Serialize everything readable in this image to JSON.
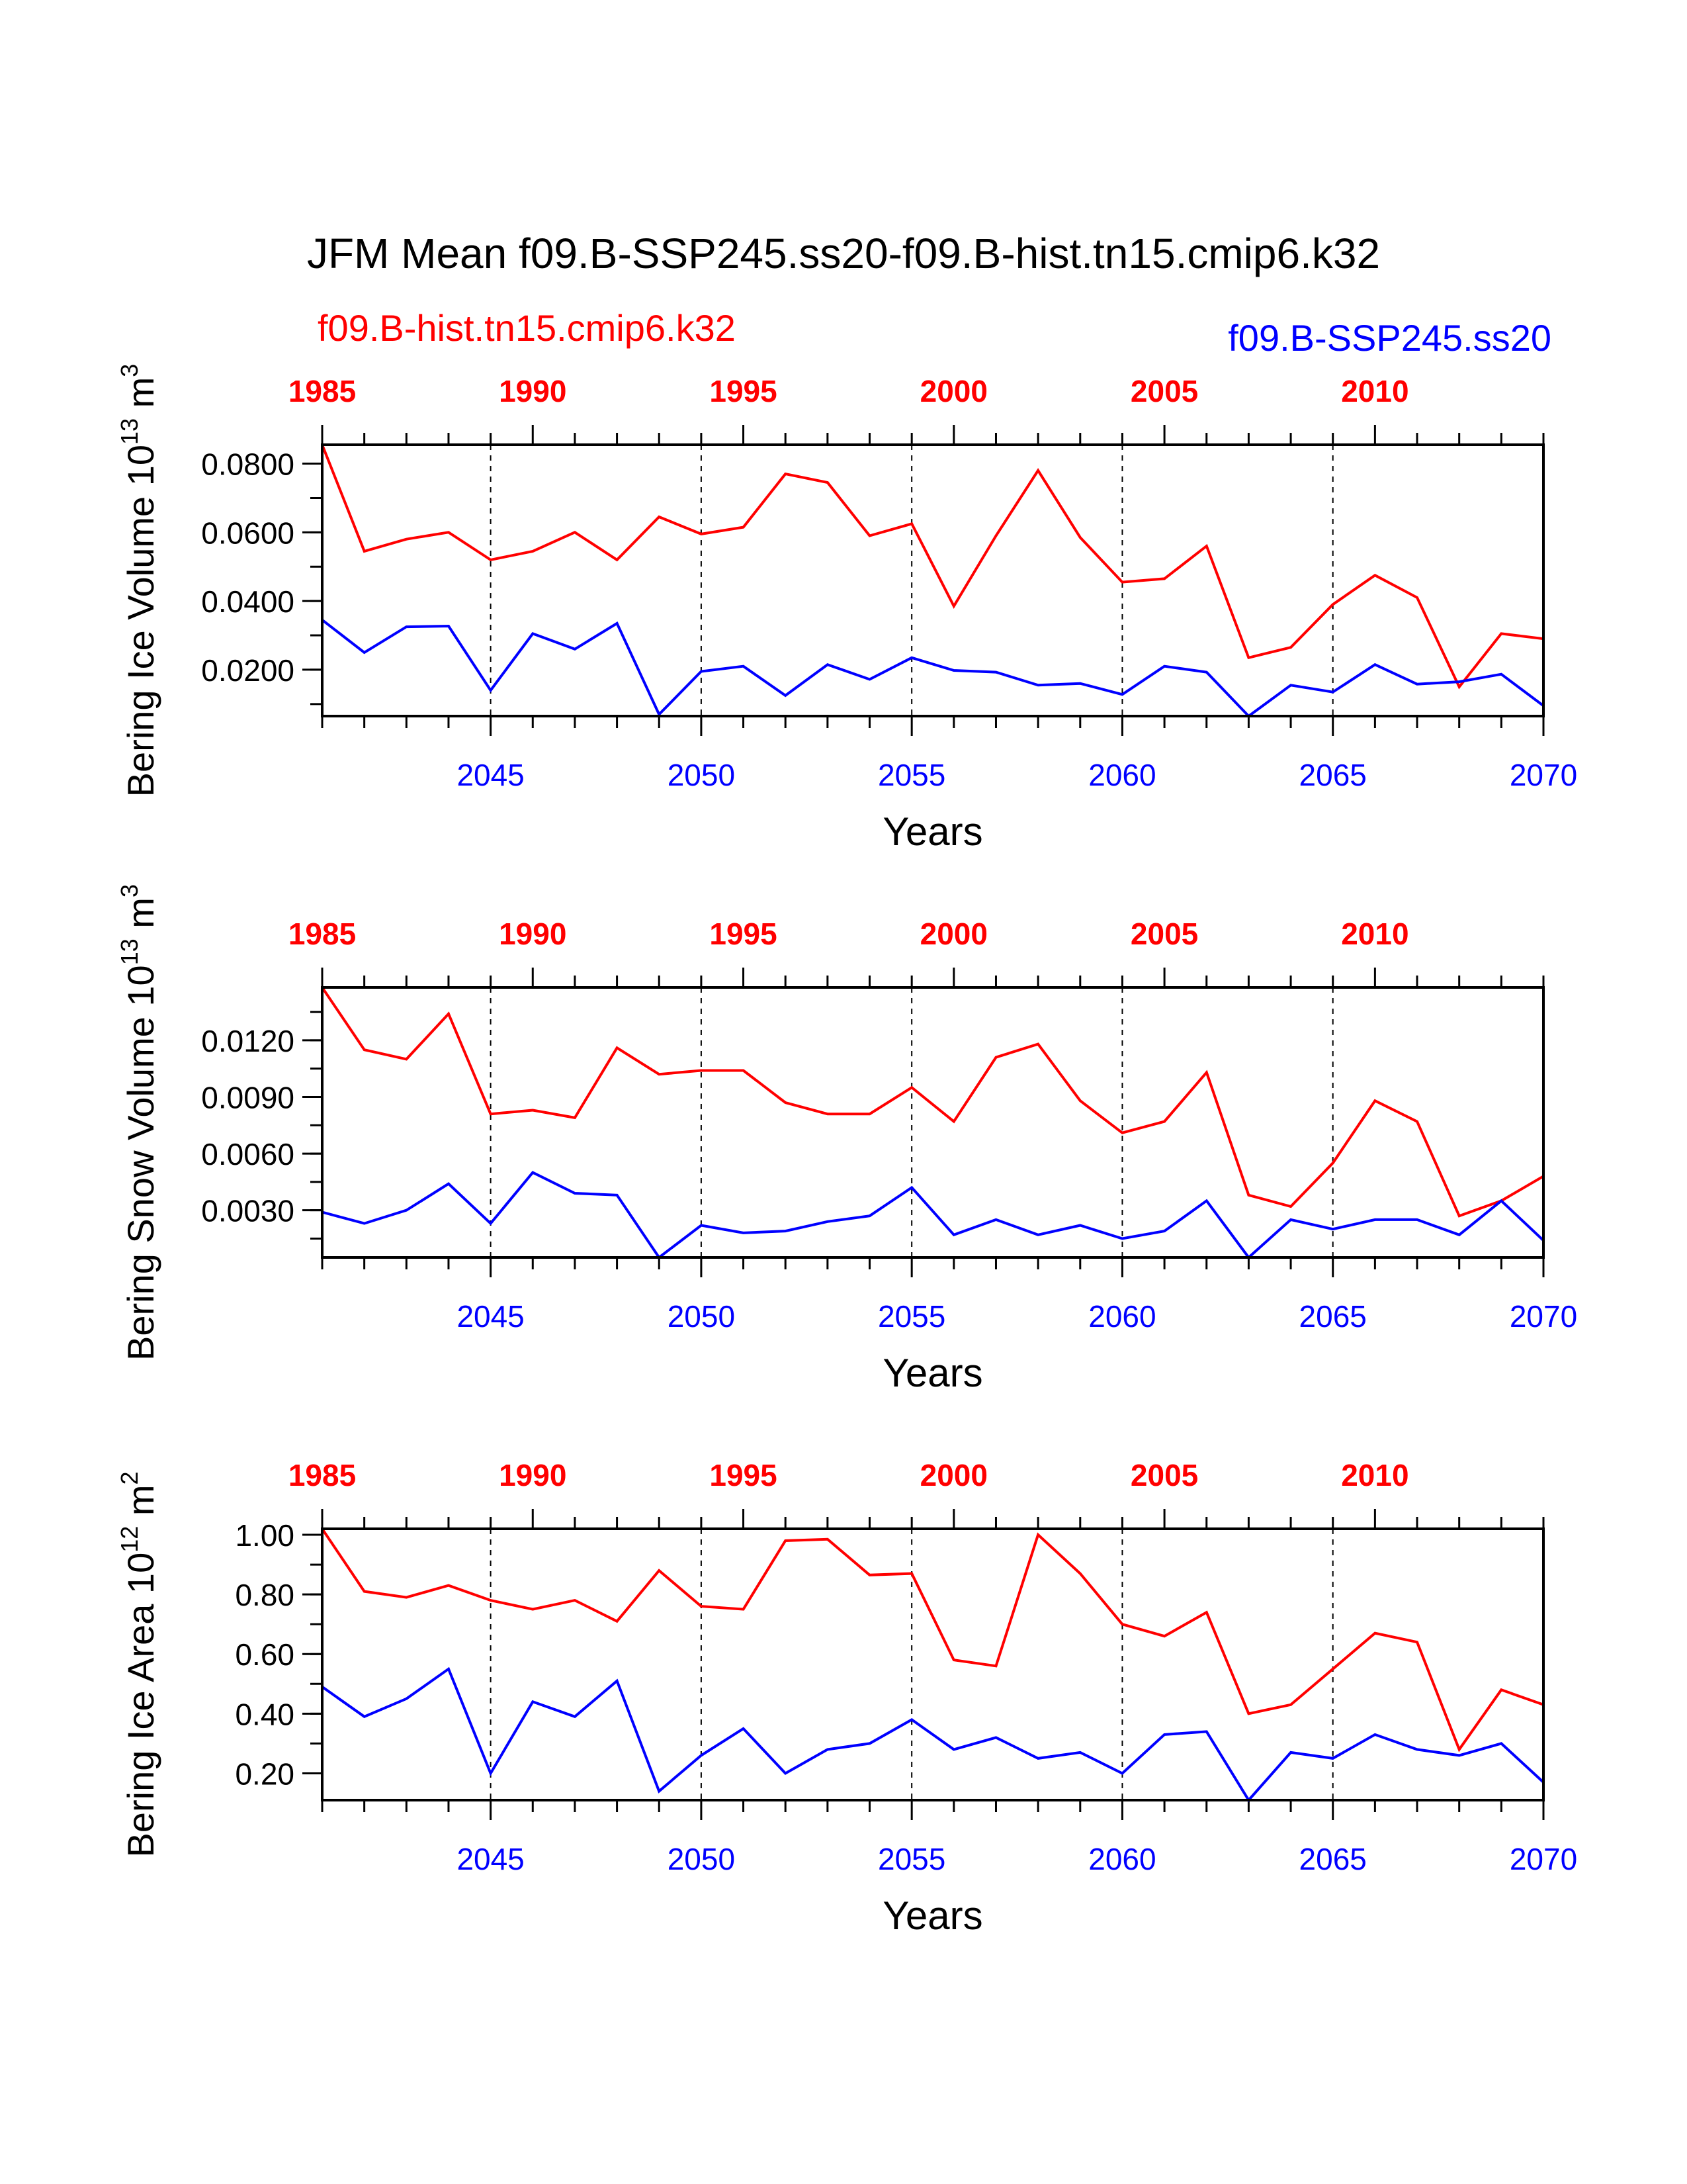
{
  "title": "JFM Mean f09.B-SSP245.ss20-f09.B-hist.tn15.cmip6.k32",
  "legend": {
    "left": {
      "label": "f09.B-hist.tn15.cmip6.k32",
      "color": "#ff0000"
    },
    "right": {
      "label": "f09.B-SSP245.ss20",
      "color": "#0000ff"
    }
  },
  "colors": {
    "hist": "#ff0000",
    "ssp": "#0000ff",
    "axis": "#000000"
  },
  "chart_data": [
    {
      "type": "line",
      "ylabel": "Bering Ice Volume 10",
      "ylabel_exp": "13",
      "ylabel_unit": " m",
      "ylabel_unit_exp": "3",
      "xlabel": "Years",
      "ylim": [
        0.0065,
        0.0855
      ],
      "yticks": [
        0.02,
        0.04,
        0.06,
        0.08
      ],
      "ytick_labels": [
        "0.0200",
        "0.0400",
        "0.0600",
        "0.0800"
      ],
      "x_bottom": {
        "range": [
          2041,
          2070
        ],
        "ticks": [
          2045,
          2050,
          2055,
          2060,
          2065,
          2070
        ],
        "labels": [
          "2045",
          "2050",
          "2055",
          "2060",
          "2065",
          "2070"
        ]
      },
      "x_top": {
        "range": [
          1985,
          2014
        ],
        "ticks": [
          1985,
          1990,
          1995,
          2000,
          2005,
          2010
        ],
        "labels": [
          "1985",
          "1990",
          "1995",
          "2000",
          "2005",
          "2010"
        ]
      },
      "grid": "dashed verticals at labeled bottom ticks",
      "series": [
        {
          "name": "f09.B-hist.tn15.cmip6.k32",
          "color": "#ff0000",
          "axis": "top",
          "x": [
            1985,
            1986,
            1987,
            1988,
            1989,
            1990,
            1991,
            1992,
            1993,
            1994,
            1995,
            1996,
            1997,
            1998,
            1999,
            2000,
            2001,
            2002,
            2003,
            2004,
            2005,
            2006,
            2007,
            2008,
            2009,
            2010,
            2011,
            2012,
            2013,
            2014
          ],
          "values": [
            0.0855,
            0.0545,
            0.058,
            0.06,
            0.052,
            0.0545,
            0.06,
            0.052,
            0.0645,
            0.0595,
            0.0615,
            0.077,
            0.0745,
            0.059,
            0.0625,
            0.0385,
            0.059,
            0.078,
            0.0585,
            0.0455,
            0.0465,
            0.056,
            0.0235,
            0.0265,
            0.039,
            0.0475,
            0.041,
            0.015,
            0.0305,
            0.029
          ]
        },
        {
          "name": "f09.B-SSP245.ss20",
          "color": "#0000ff",
          "axis": "bottom",
          "x": [
            2041,
            2042,
            2043,
            2044,
            2045,
            2046,
            2047,
            2048,
            2049,
            2050,
            2051,
            2052,
            2053,
            2054,
            2055,
            2056,
            2057,
            2058,
            2059,
            2060,
            2061,
            2062,
            2063,
            2064,
            2065,
            2066,
            2067,
            2068,
            2069,
            2070
          ],
          "values": [
            0.0345,
            0.025,
            0.0325,
            0.0327,
            0.014,
            0.0305,
            0.026,
            0.0335,
            0.007,
            0.0195,
            0.021,
            0.0125,
            0.0215,
            0.0172,
            0.0235,
            0.0198,
            0.0193,
            0.0155,
            0.016,
            0.0128,
            0.021,
            0.0193,
            0.0065,
            0.0155,
            0.0135,
            0.0215,
            0.0158,
            0.0165,
            0.0187,
            0.0095
          ]
        }
      ]
    },
    {
      "type": "line",
      "ylabel": "Bering Snow Volume 10",
      "ylabel_exp": "13",
      "ylabel_unit": " m",
      "ylabel_unit_exp": "3",
      "xlabel": "Years",
      "ylim": [
        0.0005,
        0.0148
      ],
      "yticks": [
        0.003,
        0.006,
        0.009,
        0.012
      ],
      "ytick_labels": [
        "0.0030",
        "0.0060",
        "0.0090",
        "0.0120"
      ],
      "x_bottom": {
        "range": [
          2041,
          2070
        ],
        "ticks": [
          2045,
          2050,
          2055,
          2060,
          2065,
          2070
        ],
        "labels": [
          "2045",
          "2050",
          "2055",
          "2060",
          "2065",
          "2070"
        ]
      },
      "x_top": {
        "range": [
          1985,
          2014
        ],
        "ticks": [
          1985,
          1990,
          1995,
          2000,
          2005,
          2010
        ],
        "labels": [
          "1985",
          "1990",
          "1995",
          "2000",
          "2005",
          "2010"
        ]
      },
      "grid": "dashed verticals at labeled bottom ticks",
      "series": [
        {
          "name": "f09.B-hist.tn15.cmip6.k32",
          "color": "#ff0000",
          "axis": "top",
          "x": [
            1985,
            1986,
            1987,
            1988,
            1989,
            1990,
            1991,
            1992,
            1993,
            1994,
            1995,
            1996,
            1997,
            1998,
            1999,
            2000,
            2001,
            2002,
            2003,
            2004,
            2005,
            2006,
            2007,
            2008,
            2009,
            2010,
            2011,
            2012,
            2013,
            2014
          ],
          "values": [
            0.0148,
            0.0115,
            0.011,
            0.0134,
            0.0081,
            0.0083,
            0.0079,
            0.0116,
            0.0102,
            0.0104,
            0.0104,
            0.0087,
            0.0081,
            0.0081,
            0.0095,
            0.0077,
            0.0111,
            0.0118,
            0.0088,
            0.0071,
            0.0077,
            0.0103,
            0.0038,
            0.0032,
            0.0055,
            0.0088,
            0.0077,
            0.0027,
            0.0035,
            0.0048
          ]
        },
        {
          "name": "f09.B-SSP245.ss20",
          "color": "#0000ff",
          "axis": "bottom",
          "x": [
            2041,
            2042,
            2043,
            2044,
            2045,
            2046,
            2047,
            2048,
            2049,
            2050,
            2051,
            2052,
            2053,
            2054,
            2055,
            2056,
            2057,
            2058,
            2059,
            2060,
            2061,
            2062,
            2063,
            2064,
            2065,
            2066,
            2067,
            2068,
            2069,
            2070
          ],
          "values": [
            0.0029,
            0.0023,
            0.003,
            0.0044,
            0.0023,
            0.005,
            0.0039,
            0.0038,
            0.0005,
            0.0022,
            0.0018,
            0.0019,
            0.0024,
            0.0027,
            0.0042,
            0.0017,
            0.0025,
            0.0017,
            0.0022,
            0.0015,
            0.0019,
            0.0035,
            0.0005,
            0.0025,
            0.002,
            0.0025,
            0.0025,
            0.0017,
            0.0035,
            0.0014
          ]
        }
      ]
    },
    {
      "type": "line",
      "ylabel": "Bering Ice Area 10",
      "ylabel_exp": "12",
      "ylabel_unit": " m",
      "ylabel_unit_exp": "2",
      "xlabel": "Years",
      "ylim": [
        0.11,
        1.02
      ],
      "yticks": [
        0.2,
        0.4,
        0.6,
        0.8,
        1.0
      ],
      "ytick_labels": [
        "0.20",
        "0.40",
        "0.60",
        "0.80",
        "1.00"
      ],
      "x_bottom": {
        "range": [
          2041,
          2070
        ],
        "ticks": [
          2045,
          2050,
          2055,
          2060,
          2065,
          2070
        ],
        "labels": [
          "2045",
          "2050",
          "2055",
          "2060",
          "2065",
          "2070"
        ]
      },
      "x_top": {
        "range": [
          1985,
          2014
        ],
        "ticks": [
          1985,
          1990,
          1995,
          2000,
          2005,
          2010
        ],
        "labels": [
          "1985",
          "1990",
          "1995",
          "2000",
          "2005",
          "2010"
        ]
      },
      "grid": "dashed verticals at labeled bottom ticks",
      "series": [
        {
          "name": "f09.B-hist.tn15.cmip6.k32",
          "color": "#ff0000",
          "axis": "top",
          "x": [
            1985,
            1986,
            1987,
            1988,
            1989,
            1990,
            1991,
            1992,
            1993,
            1994,
            1995,
            1996,
            1997,
            1998,
            1999,
            2000,
            2001,
            2002,
            2003,
            2004,
            2005,
            2006,
            2007,
            2008,
            2009,
            2010,
            2011,
            2012,
            2013,
            2014
          ],
          "values": [
            1.02,
            0.81,
            0.79,
            0.83,
            0.78,
            0.75,
            0.78,
            0.71,
            0.88,
            0.76,
            0.75,
            0.98,
            0.985,
            0.865,
            0.87,
            0.58,
            0.56,
            1.0,
            0.87,
            0.7,
            0.66,
            0.74,
            0.4,
            0.43,
            0.55,
            0.67,
            0.64,
            0.28,
            0.48,
            0.43
          ]
        },
        {
          "name": "f09.B-SSP245.ss20",
          "color": "#0000ff",
          "axis": "bottom",
          "x": [
            2041,
            2042,
            2043,
            2044,
            2045,
            2046,
            2047,
            2048,
            2049,
            2050,
            2051,
            2052,
            2053,
            2054,
            2055,
            2056,
            2057,
            2058,
            2059,
            2060,
            2061,
            2062,
            2063,
            2064,
            2065,
            2066,
            2067,
            2068,
            2069,
            2070
          ],
          "values": [
            0.49,
            0.39,
            0.45,
            0.55,
            0.2,
            0.44,
            0.39,
            0.51,
            0.14,
            0.26,
            0.35,
            0.2,
            0.28,
            0.3,
            0.38,
            0.28,
            0.32,
            0.25,
            0.27,
            0.2,
            0.33,
            0.34,
            0.11,
            0.27,
            0.25,
            0.33,
            0.28,
            0.26,
            0.3,
            0.17
          ]
        }
      ]
    }
  ]
}
